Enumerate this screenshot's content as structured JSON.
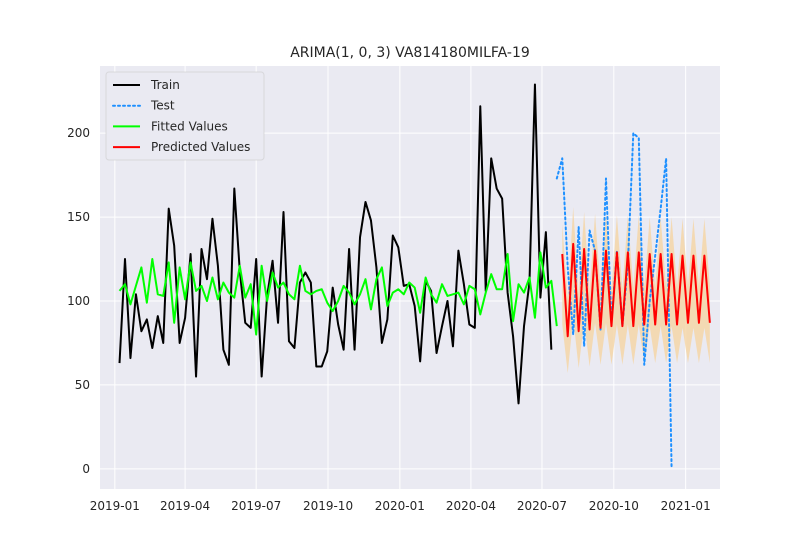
{
  "chart_data": {
    "type": "line",
    "title": "ARIMA(1, 0, 3) VA814180MILFA-19",
    "xlabel": "",
    "ylabel": "",
    "grid": true,
    "legend_position": "top-left",
    "x_range": [
      "2018-12-13",
      "2021-02-14"
    ],
    "ylim": [
      -12,
      240
    ],
    "x_ticks": [
      "2019-01",
      "2019-04",
      "2019-07",
      "2019-10",
      "2020-01",
      "2020-04",
      "2020-07",
      "2020-10",
      "2021-01"
    ],
    "y_ticks": [
      0,
      50,
      100,
      150,
      200
    ],
    "x_start": "2019-01-07",
    "x_step_days": 7,
    "colors": {
      "background": "#eaeaf2",
      "grid": "#ffffff",
      "Train": "#000000",
      "Test": "#1e90ff",
      "Fitted Values": "#00ff00",
      "Predicted Values": "#ff0000",
      "interval": "#f5d6a8"
    },
    "series": [
      {
        "name": "Train",
        "style": "solid",
        "start_index": 0,
        "values": [
          63,
          125,
          66,
          104,
          82,
          89,
          72,
          91,
          75,
          155,
          133,
          75,
          90,
          128,
          55,
          131,
          113,
          149,
          121,
          71,
          62,
          167,
          118,
          87,
          84,
          125,
          55,
          103,
          124,
          87,
          153,
          76,
          72,
          111,
          117,
          111,
          61,
          61,
          70,
          108,
          86,
          71,
          131,
          71,
          138,
          159,
          148,
          120,
          75,
          89,
          139,
          132,
          109,
          110,
          97,
          64,
          112,
          106,
          69,
          85,
          100,
          73,
          130,
          110,
          86,
          84,
          216,
          106,
          185,
          167,
          161,
          105,
          79,
          39,
          85,
          111,
          229,
          102,
          141,
          71
        ]
      },
      {
        "name": "Fitted Values",
        "style": "solid",
        "start_index": 0,
        "values": [
          106,
          110,
          98,
          109,
          120,
          99,
          125,
          104,
          103,
          123,
          87,
          120,
          101,
          123,
          106,
          109,
          100,
          114,
          101,
          111,
          105,
          102,
          121,
          102,
          110,
          80,
          121,
          100,
          117,
          108,
          111,
          104,
          101,
          121,
          106,
          104,
          106,
          107,
          99,
          94,
          100,
          109,
          105,
          98,
          104,
          113,
          95,
          113,
          120,
          97,
          105,
          107,
          104,
          111,
          108,
          93,
          114,
          104,
          99,
          110,
          103,
          104,
          105,
          98,
          109,
          107,
          92,
          105,
          116,
          107,
          107,
          128,
          88,
          110,
          105,
          114,
          90,
          129,
          108,
          112,
          85
        ]
      },
      {
        "name": "Test",
        "style": "dotted",
        "start_index": 80,
        "values": [
          173,
          185,
          120,
          80,
          144,
          73,
          142,
          130,
          83,
          173,
          87,
          130,
          85,
          122,
          200,
          197,
          62,
          100,
          127,
          155,
          185,
          0
        ]
      },
      {
        "name": "Predicted Values",
        "style": "solid",
        "start_index": 81,
        "values": [
          128,
          79,
          134,
          82,
          131,
          83,
          130,
          84,
          130,
          85,
          129,
          85,
          129,
          85,
          129,
          86,
          128,
          86,
          128,
          86,
          128,
          86,
          127,
          87,
          127,
          87,
          127,
          87
        ]
      }
    ],
    "interval": {
      "name": "confidence interval",
      "start_index": 81,
      "lower": [
        86,
        57,
        90,
        60,
        88,
        61,
        87,
        62,
        87,
        62,
        86,
        62,
        86,
        62,
        86,
        63,
        85,
        63,
        85,
        63,
        85,
        63,
        84,
        63,
        84,
        63,
        84,
        63
      ],
      "upper": [
        146,
        101,
        156,
        104,
        153,
        105,
        152,
        106,
        152,
        107,
        151,
        107,
        151,
        108,
        151,
        108,
        150,
        108,
        150,
        108,
        150,
        108,
        149,
        109,
        149,
        109,
        149,
        109
      ]
    },
    "legend": [
      "Train",
      "Test",
      "Fitted Values",
      "Predicted Values"
    ]
  }
}
